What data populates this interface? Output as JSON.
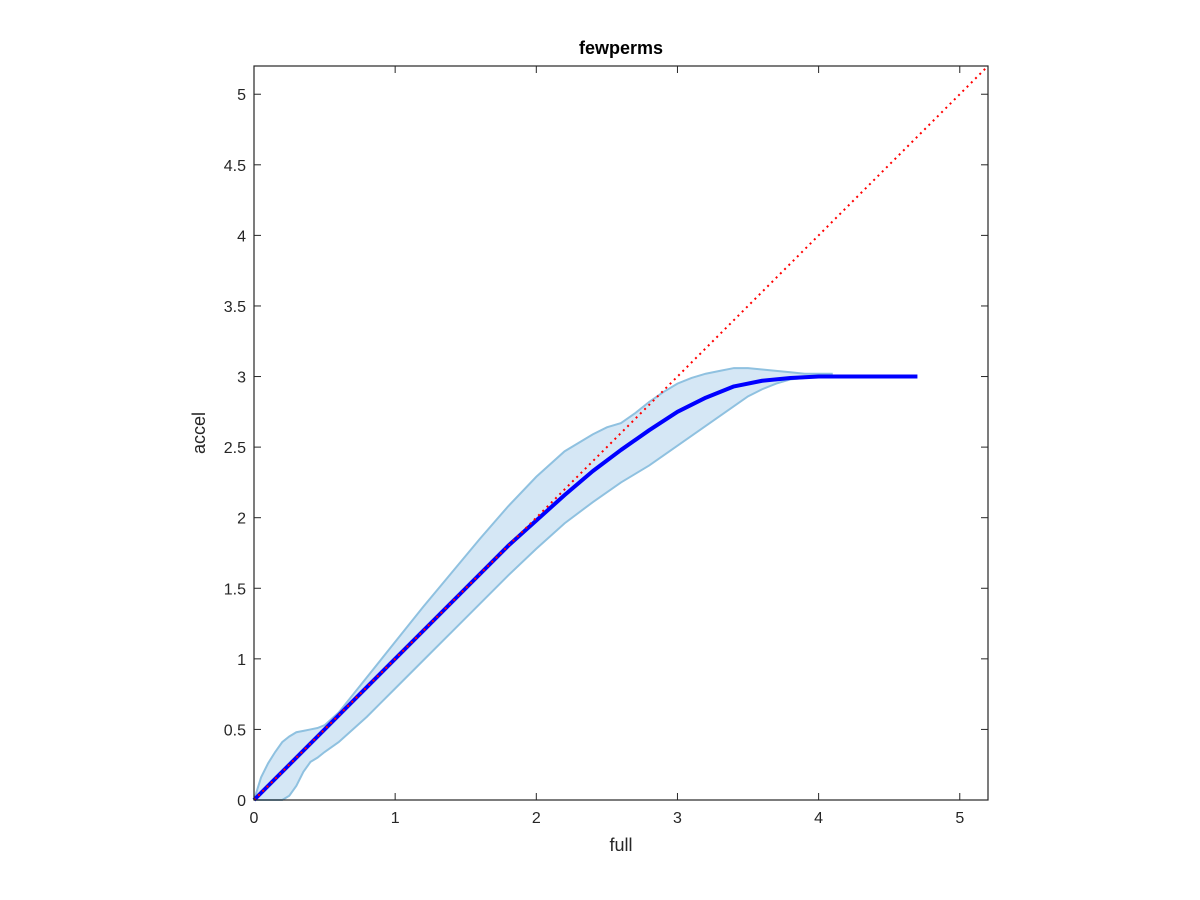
{
  "chart_data": {
    "type": "line",
    "title": "fewperms",
    "xlabel": "full",
    "ylabel": "accel",
    "xlim": [
      0,
      5.2
    ],
    "ylim": [
      0,
      5.2
    ],
    "grid": false,
    "box": true,
    "x_ticks": [
      0,
      1,
      2,
      3,
      4,
      5
    ],
    "y_ticks": [
      0,
      0.5,
      1,
      1.5,
      2,
      2.5,
      3,
      3.5,
      4,
      4.5,
      5
    ],
    "x_tick_labels": [
      "0",
      "1",
      "2",
      "3",
      "4",
      "5"
    ],
    "y_tick_labels": [
      "0",
      "0.5",
      "1",
      "1.5",
      "2",
      "2.5",
      "3",
      "3.5",
      "4",
      "4.5",
      "5"
    ],
    "colors": {
      "mean_line": "#0000ff",
      "band_fill": "#d5e7f5",
      "band_edge": "#8fc1e0",
      "identity_line": "#ff0000",
      "axes": "#262626"
    },
    "series": [
      {
        "kind": "band",
        "x": [
          0,
          0.05,
          0.1,
          0.15,
          0.2,
          0.25,
          0.3,
          0.35,
          0.4,
          0.45,
          0.5,
          0.6,
          0.8,
          1.0,
          1.2,
          1.4,
          1.6,
          1.8,
          2.0,
          2.2,
          2.4,
          2.5,
          2.6,
          2.7,
          2.8,
          2.9,
          3.0,
          3.1,
          3.2,
          3.3,
          3.4,
          3.5,
          3.6,
          3.7,
          3.8,
          3.9,
          4.0,
          4.1
        ],
        "upper": [
          0,
          0.16,
          0.26,
          0.34,
          0.41,
          0.45,
          0.48,
          0.49,
          0.5,
          0.51,
          0.53,
          0.62,
          0.87,
          1.12,
          1.37,
          1.61,
          1.85,
          2.08,
          2.29,
          2.47,
          2.59,
          2.64,
          2.67,
          2.74,
          2.82,
          2.89,
          2.95,
          2.99,
          3.02,
          3.04,
          3.06,
          3.06,
          3.05,
          3.04,
          3.03,
          3.02,
          3.02,
          3.02
        ],
        "lower": [
          0,
          0,
          0,
          0,
          0,
          0.03,
          0.1,
          0.2,
          0.27,
          0.3,
          0.34,
          0.41,
          0.59,
          0.79,
          0.99,
          1.19,
          1.39,
          1.59,
          1.78,
          1.96,
          2.11,
          2.18,
          2.25,
          2.31,
          2.37,
          2.44,
          2.51,
          2.58,
          2.65,
          2.72,
          2.79,
          2.86,
          2.91,
          2.95,
          2.98,
          2.99,
          3.0,
          3.0
        ]
      },
      {
        "kind": "line",
        "x": [
          0,
          0.5,
          1.0,
          1.5,
          1.8,
          2.0,
          2.2,
          2.4,
          2.6,
          2.8,
          3.0,
          3.2,
          3.4,
          3.6,
          3.8,
          4.0,
          4.2,
          4.4,
          4.7
        ],
        "y": [
          0,
          0.5,
          1.0,
          1.5,
          1.8,
          1.98,
          2.16,
          2.33,
          2.48,
          2.62,
          2.75,
          2.85,
          2.93,
          2.97,
          2.99,
          3.0,
          3.0,
          3.0,
          3.0
        ]
      },
      {
        "kind": "identity",
        "x": [
          0,
          5.2
        ],
        "y": [
          0,
          5.2
        ]
      }
    ]
  }
}
